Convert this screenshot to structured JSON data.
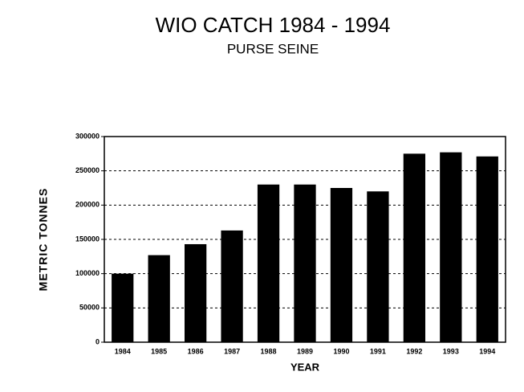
{
  "chart_data": {
    "type": "bar",
    "title": "WIO CATCH  1984 - 1994",
    "subtitle": "PURSE SEINE",
    "x_label": "YEAR",
    "y_label": "METRIC TONNES",
    "categories": [
      "1984",
      "1985",
      "1986",
      "1987",
      "1988",
      "1989",
      "1990",
      "1991",
      "1992",
      "1993",
      "1994"
    ],
    "values": [
      100000,
      127000,
      143000,
      163000,
      230000,
      230000,
      225000,
      220000,
      275000,
      277000,
      271000
    ],
    "color": "#000000",
    "ylim": [
      0,
      300000
    ],
    "yticks": [
      0,
      50000,
      100000,
      150000,
      200000,
      250000,
      300000
    ],
    "grid": true
  }
}
